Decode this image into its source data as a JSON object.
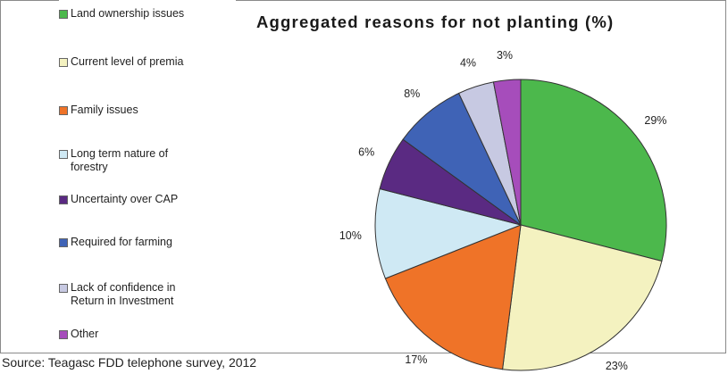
{
  "source_note": "Source: Teagasc FDD telephone survey, 2012",
  "chart_data": {
    "type": "pie",
    "title": "Aggregated reasons for not planting (%)",
    "legend_position": "left",
    "slices": [
      {
        "name": "Land ownership issues",
        "value": 29,
        "label": "29%",
        "color": "#4cb84c"
      },
      {
        "name": "Current level of premia",
        "value": 23,
        "label": "23%",
        "color": "#f4f2c0"
      },
      {
        "name": "Family issues",
        "value": 17,
        "label": "17%",
        "color": "#ef7328"
      },
      {
        "name": "Long term nature of\nforestry",
        "value": 10,
        "label": "10%",
        "color": "#cfe9f4"
      },
      {
        "name": "Uncertainty over CAP",
        "value": 6,
        "label": "6%",
        "color": "#5a2a82"
      },
      {
        "name": "Required for farming",
        "value": 8,
        "label": "8%",
        "color": "#3f63b6"
      },
      {
        "name": "Lack of confidence in\nReturn in Investment",
        "value": 4,
        "label": "4%",
        "color": "#c7c9e2"
      },
      {
        "name": "Other",
        "value": 3,
        "label": "3%",
        "color": "#a64dbb"
      }
    ]
  }
}
